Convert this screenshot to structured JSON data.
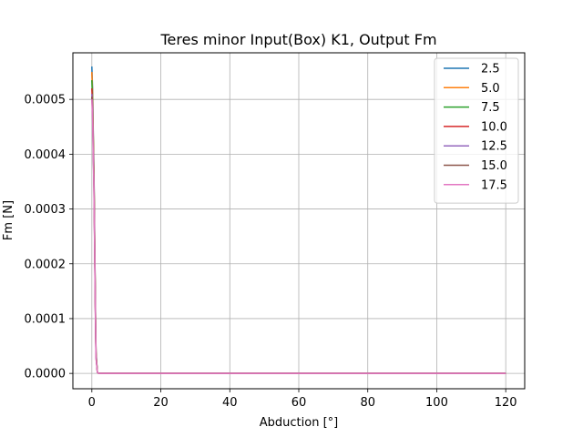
{
  "chart_data": {
    "type": "line",
    "title": "Teres minor Input(Box) K1, Output Fm",
    "xlabel": "Abduction [°]",
    "ylabel": "Fm [N]",
    "xlim": [
      -5.5,
      125.5
    ],
    "ylim": [
      -2.8e-05,
      0.000585
    ],
    "xticks": [
      0,
      20,
      40,
      60,
      80,
      100,
      120
    ],
    "xtick_labels": [
      "0",
      "20",
      "40",
      "60",
      "80",
      "100",
      "120"
    ],
    "yticks": [
      0.0,
      0.0001,
      0.0002,
      0.0003,
      0.0004,
      0.0005
    ],
    "ytick_labels": [
      "0.0000",
      "0.0001",
      "0.0002",
      "0.0003",
      "0.0004",
      "0.0005"
    ],
    "grid": true,
    "legend_position": "top-right",
    "x": [
      0,
      0.2,
      0.4,
      0.6,
      0.8,
      1.0,
      1.2,
      1.6,
      2,
      5,
      10,
      20,
      40,
      60,
      80,
      100,
      120
    ],
    "series": [
      {
        "name": "2.5",
        "color": "#1f77b4",
        "values": [
          0.00056,
          0.00052,
          0.00044,
          0.00037,
          0.00026,
          0.00014,
          4e-05,
          2e-06,
          0,
          0,
          0,
          0,
          0,
          0,
          0,
          0,
          0
        ]
      },
      {
        "name": "5.0",
        "color": "#ff7f0e",
        "values": [
          0.00055,
          0.00051,
          0.000435,
          0.000365,
          0.000255,
          0.000135,
          3.8e-05,
          2e-06,
          0,
          0,
          0,
          0,
          0,
          0,
          0,
          0,
          0
        ]
      },
      {
        "name": "7.5",
        "color": "#2ca02c",
        "values": [
          0.000535,
          0.0005,
          0.000428,
          0.000358,
          0.00025,
          0.000132,
          3.6e-05,
          2e-06,
          0,
          0,
          0,
          0,
          0,
          0,
          0,
          0,
          0
        ]
      },
      {
        "name": "10.0",
        "color": "#d62728",
        "values": [
          0.00052,
          0.00049,
          0.00042,
          0.000352,
          0.000245,
          0.000128,
          3.4e-05,
          2e-06,
          0,
          0,
          0,
          0,
          0,
          0,
          0,
          0,
          0
        ]
      },
      {
        "name": "12.5",
        "color": "#9467bd",
        "values": [
          0.00051,
          0.00048,
          0.000412,
          0.000346,
          0.00024,
          0.000125,
          3.2e-05,
          2e-06,
          0,
          0,
          0,
          0,
          0,
          0,
          0,
          0,
          0
        ]
      },
      {
        "name": "15.0",
        "color": "#8c564b",
        "values": [
          0.000505,
          0.000475,
          0.000406,
          0.00034,
          0.000236,
          0.000122,
          3e-05,
          2e-06,
          0,
          0,
          0,
          0,
          0,
          0,
          0,
          0,
          0
        ]
      },
      {
        "name": "17.5",
        "color": "#e377c2",
        "values": [
          0.0005,
          0.000468,
          0.000398,
          0.000334,
          0.000232,
          0.000118,
          2.8e-05,
          2e-06,
          0,
          0,
          0,
          0,
          0,
          0,
          0,
          0,
          0
        ]
      }
    ]
  }
}
